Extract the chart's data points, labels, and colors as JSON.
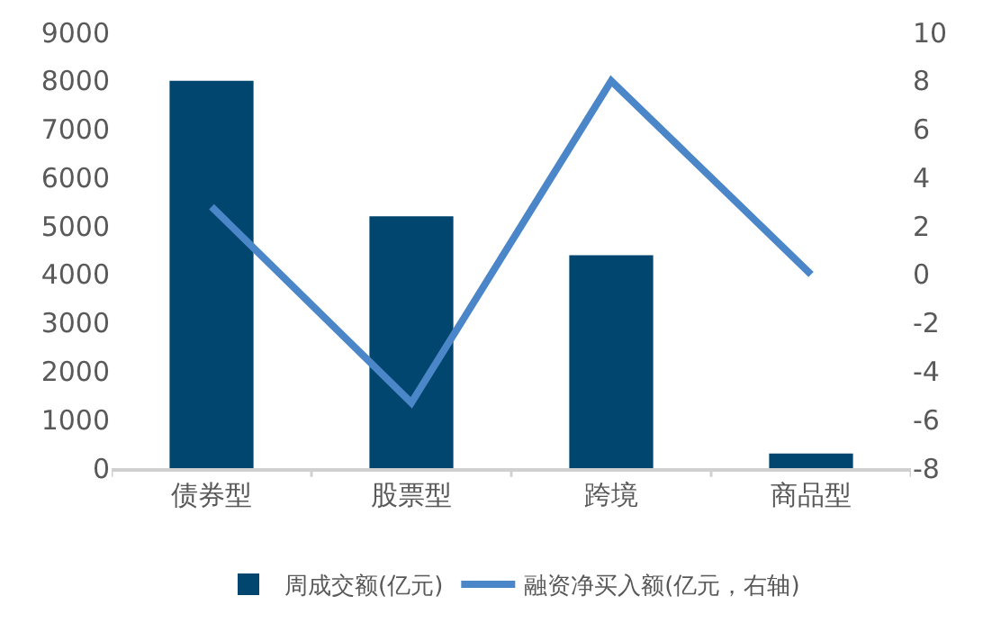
{
  "chart_data": {
    "type": "bar",
    "categories": [
      "债券型",
      "股票型",
      "跨境",
      "商品型"
    ],
    "series": [
      {
        "name": "周成交额(亿元)",
        "color": "#00466e",
        "values": [
          8000,
          5200,
          4400,
          300
        ]
      },
      {
        "name": "融资净买入额(亿元，右轴)",
        "type": "line",
        "axis": "y2",
        "color": "#4a86c8",
        "values": [
          2.8,
          -5.3,
          8,
          0
        ]
      }
    ],
    "ylim": [
      0,
      9000
    ],
    "yticks": [
      0,
      1000,
      2000,
      3000,
      4000,
      5000,
      6000,
      7000,
      8000,
      9000
    ],
    "y2lim": [
      -8,
      10
    ],
    "y2ticks": [
      -8,
      -6,
      -4,
      -2,
      0,
      2,
      4,
      6,
      8,
      10
    ],
    "grid": false,
    "legend": "bottom",
    "marker": "none",
    "line_style": "solid"
  }
}
